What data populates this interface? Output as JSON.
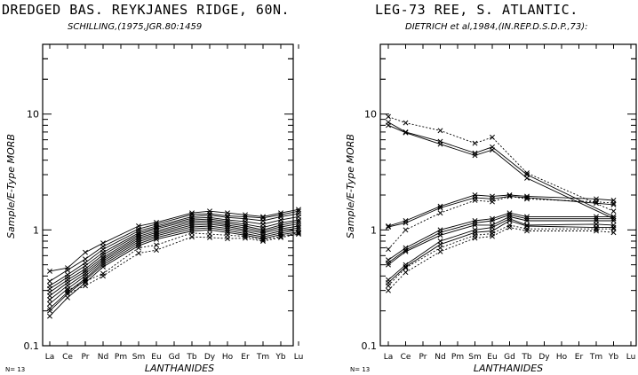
{
  "chart_data": [
    {
      "type": "line",
      "title": "DREDGED BAS. REYKJANES RIDGE, 60N.",
      "subtitle": "SCHILLING,(1975,JGR.80:1459",
      "ylabel": "Sample/E-Type MORB",
      "xlabel": "LANTHANIDES",
      "yscale": "log",
      "ylim": [
        0.1,
        40
      ],
      "yticks": [
        {
          "value": 0.1,
          "label": "0.1"
        },
        {
          "value": 1,
          "label": "1"
        },
        {
          "value": 10,
          "label": "10"
        }
      ],
      "categories": [
        "La",
        "Ce",
        "Pr",
        "Nd",
        "Pm",
        "Sm",
        "Eu",
        "Gd",
        "Tb",
        "Dy",
        "Ho",
        "Er",
        "Tm",
        "Yb",
        "Lu"
      ],
      "sample_count": "N= 13",
      "marker": "x",
      "series": [
        {
          "values": [
            0.44,
            0.47,
            0.64,
            0.77,
            null,
            1.08,
            1.16,
            null,
            1.4,
            1.45,
            1.4,
            1.35,
            1.3,
            1.4,
            1.5
          ],
          "style": "solid"
        },
        {
          "values": [
            0.36,
            0.45,
            0.56,
            0.72,
            null,
            1.02,
            1.12,
            null,
            1.36,
            1.38,
            1.32,
            1.3,
            1.27,
            1.35,
            1.45
          ],
          "style": "solid"
        },
        {
          "values": [
            0.33,
            0.41,
            0.52,
            0.68,
            null,
            0.98,
            1.08,
            null,
            1.3,
            1.34,
            1.28,
            1.25,
            1.2,
            1.3,
            1.38
          ],
          "style": "solid"
        },
        {
          "values": [
            0.31,
            0.39,
            0.49,
            0.64,
            null,
            0.94,
            1.05,
            null,
            1.26,
            1.28,
            1.22,
            1.18,
            1.12,
            1.22,
            1.3
          ],
          "style": "solid"
        },
        {
          "values": [
            0.29,
            0.37,
            0.46,
            0.61,
            null,
            0.91,
            1.02,
            null,
            1.22,
            1.24,
            1.18,
            1.12,
            1.05,
            1.15,
            1.22
          ],
          "style": "solid"
        },
        {
          "values": [
            0.27,
            0.35,
            0.44,
            0.58,
            null,
            0.88,
            0.98,
            null,
            1.18,
            1.2,
            1.14,
            1.08,
            1.0,
            1.1,
            1.18
          ],
          "style": "solid"
        },
        {
          "values": [
            0.25,
            0.33,
            0.42,
            0.56,
            null,
            0.85,
            0.95,
            null,
            1.14,
            1.16,
            1.1,
            1.04,
            0.97,
            1.06,
            1.13
          ],
          "style": "solid"
        },
        {
          "values": [
            0.23,
            0.31,
            0.4,
            0.54,
            null,
            0.82,
            0.92,
            null,
            1.1,
            1.12,
            1.07,
            1.0,
            0.94,
            1.02,
            1.08
          ],
          "style": "solid"
        },
        {
          "values": [
            0.21,
            0.29,
            0.38,
            0.52,
            null,
            0.79,
            0.89,
            null,
            1.06,
            1.08,
            1.03,
            0.97,
            0.9,
            0.98,
            1.04
          ],
          "style": "solid"
        },
        {
          "values": [
            0.2,
            0.28,
            0.37,
            0.5,
            null,
            0.76,
            0.86,
            null,
            1.02,
            1.04,
            0.99,
            0.93,
            0.87,
            0.94,
            1.0
          ],
          "style": "solid"
        },
        {
          "values": [
            0.18,
            0.26,
            0.35,
            0.48,
            null,
            0.73,
            0.83,
            null,
            0.98,
            1.0,
            0.95,
            0.9,
            0.84,
            0.91,
            0.96
          ],
          "style": "solid"
        },
        {
          "values": [
            null,
            0.28,
            0.33,
            0.4,
            null,
            0.63,
            0.67,
            null,
            0.87,
            0.86,
            0.84,
            0.85,
            0.8,
            0.86,
            0.92
          ],
          "style": "dotted"
        },
        {
          "values": [
            null,
            0.3,
            0.36,
            0.42,
            null,
            0.7,
            0.74,
            null,
            0.94,
            0.92,
            0.9,
            0.88,
            0.82,
            0.88,
            0.94
          ],
          "style": "dotted"
        }
      ]
    },
    {
      "type": "line",
      "title": "LEG-73 REE, S. ATLANTIC.",
      "subtitle": "DIETRICH et al,1984,(IN.REP.D.S.D.P.,73):",
      "ylabel": "Sample/E-Type MORB",
      "xlabel": "LANTHANIDES",
      "yscale": "log",
      "ylim": [
        0.1,
        40
      ],
      "yticks": [
        {
          "value": 0.1,
          "label": "0.1"
        },
        {
          "value": 1,
          "label": "1"
        },
        {
          "value": 10,
          "label": "10"
        }
      ],
      "categories": [
        "La",
        "Ce",
        "Pr",
        "Nd",
        "Pm",
        "Sm",
        "Eu",
        "Gd",
        "Tb",
        "Dy",
        "Ho",
        "Er",
        "Tm",
        "Yb",
        "Lu"
      ],
      "sample_count": "N= 13",
      "marker": "x",
      "series": [
        {
          "values": [
            9.5,
            8.4,
            null,
            7.2,
            null,
            5.6,
            6.3,
            null,
            3.1,
            null,
            null,
            null,
            null,
            1.45,
            null
          ],
          "style": "dotted"
        },
        {
          "values": [
            8.5,
            7.0,
            null,
            5.8,
            null,
            4.6,
            5.2,
            null,
            3.0,
            null,
            null,
            null,
            null,
            1.3,
            null
          ],
          "style": "solid"
        },
        {
          "values": [
            8.0,
            6.9,
            null,
            5.5,
            null,
            4.4,
            4.9,
            null,
            2.8,
            null,
            null,
            null,
            null,
            1.25,
            null
          ],
          "style": "solid"
        },
        {
          "values": [
            1.08,
            1.2,
            null,
            1.6,
            null,
            2.0,
            1.95,
            2.0,
            1.95,
            null,
            null,
            null,
            1.85,
            1.8,
            null
          ],
          "style": "solid"
        },
        {
          "values": [
            1.06,
            1.15,
            null,
            1.55,
            null,
            1.9,
            1.85,
            1.95,
            1.9,
            null,
            null,
            null,
            1.7,
            1.65,
            null
          ],
          "style": "solid"
        },
        {
          "values": [
            0.68,
            1.0,
            null,
            1.4,
            null,
            1.8,
            1.75,
            1.95,
            1.85,
            null,
            null,
            null,
            1.75,
            1.7,
            null
          ],
          "style": "dotted"
        },
        {
          "values": [
            0.55,
            0.7,
            null,
            1.0,
            null,
            1.2,
            1.25,
            1.4,
            1.3,
            null,
            null,
            null,
            1.3,
            1.3,
            null
          ],
          "style": "solid"
        },
        {
          "values": [
            0.52,
            0.67,
            null,
            0.95,
            null,
            1.15,
            1.2,
            1.35,
            1.25,
            null,
            null,
            null,
            1.25,
            1.25,
            null
          ],
          "style": "solid"
        },
        {
          "values": [
            0.5,
            0.65,
            null,
            0.9,
            null,
            1.1,
            1.1,
            1.3,
            1.2,
            null,
            null,
            null,
            1.2,
            1.2,
            null
          ],
          "style": "solid"
        },
        {
          "values": [
            0.37,
            0.5,
            null,
            0.8,
            null,
            1.0,
            1.05,
            1.25,
            1.1,
            null,
            null,
            null,
            1.12,
            1.1,
            null
          ],
          "style": "solid"
        },
        {
          "values": [
            0.35,
            0.48,
            null,
            0.75,
            null,
            0.95,
            0.98,
            1.2,
            1.08,
            null,
            null,
            null,
            1.05,
            1.05,
            null
          ],
          "style": "solid"
        },
        {
          "values": [
            0.33,
            0.47,
            null,
            0.7,
            null,
            0.9,
            0.93,
            1.1,
            1.02,
            null,
            null,
            null,
            1.02,
            1.02,
            null
          ],
          "style": "dotted"
        },
        {
          "values": [
            0.3,
            0.43,
            null,
            0.65,
            null,
            0.85,
            0.88,
            1.05,
            0.98,
            null,
            null,
            null,
            0.98,
            0.95,
            null
          ],
          "style": "dotted"
        }
      ]
    }
  ]
}
